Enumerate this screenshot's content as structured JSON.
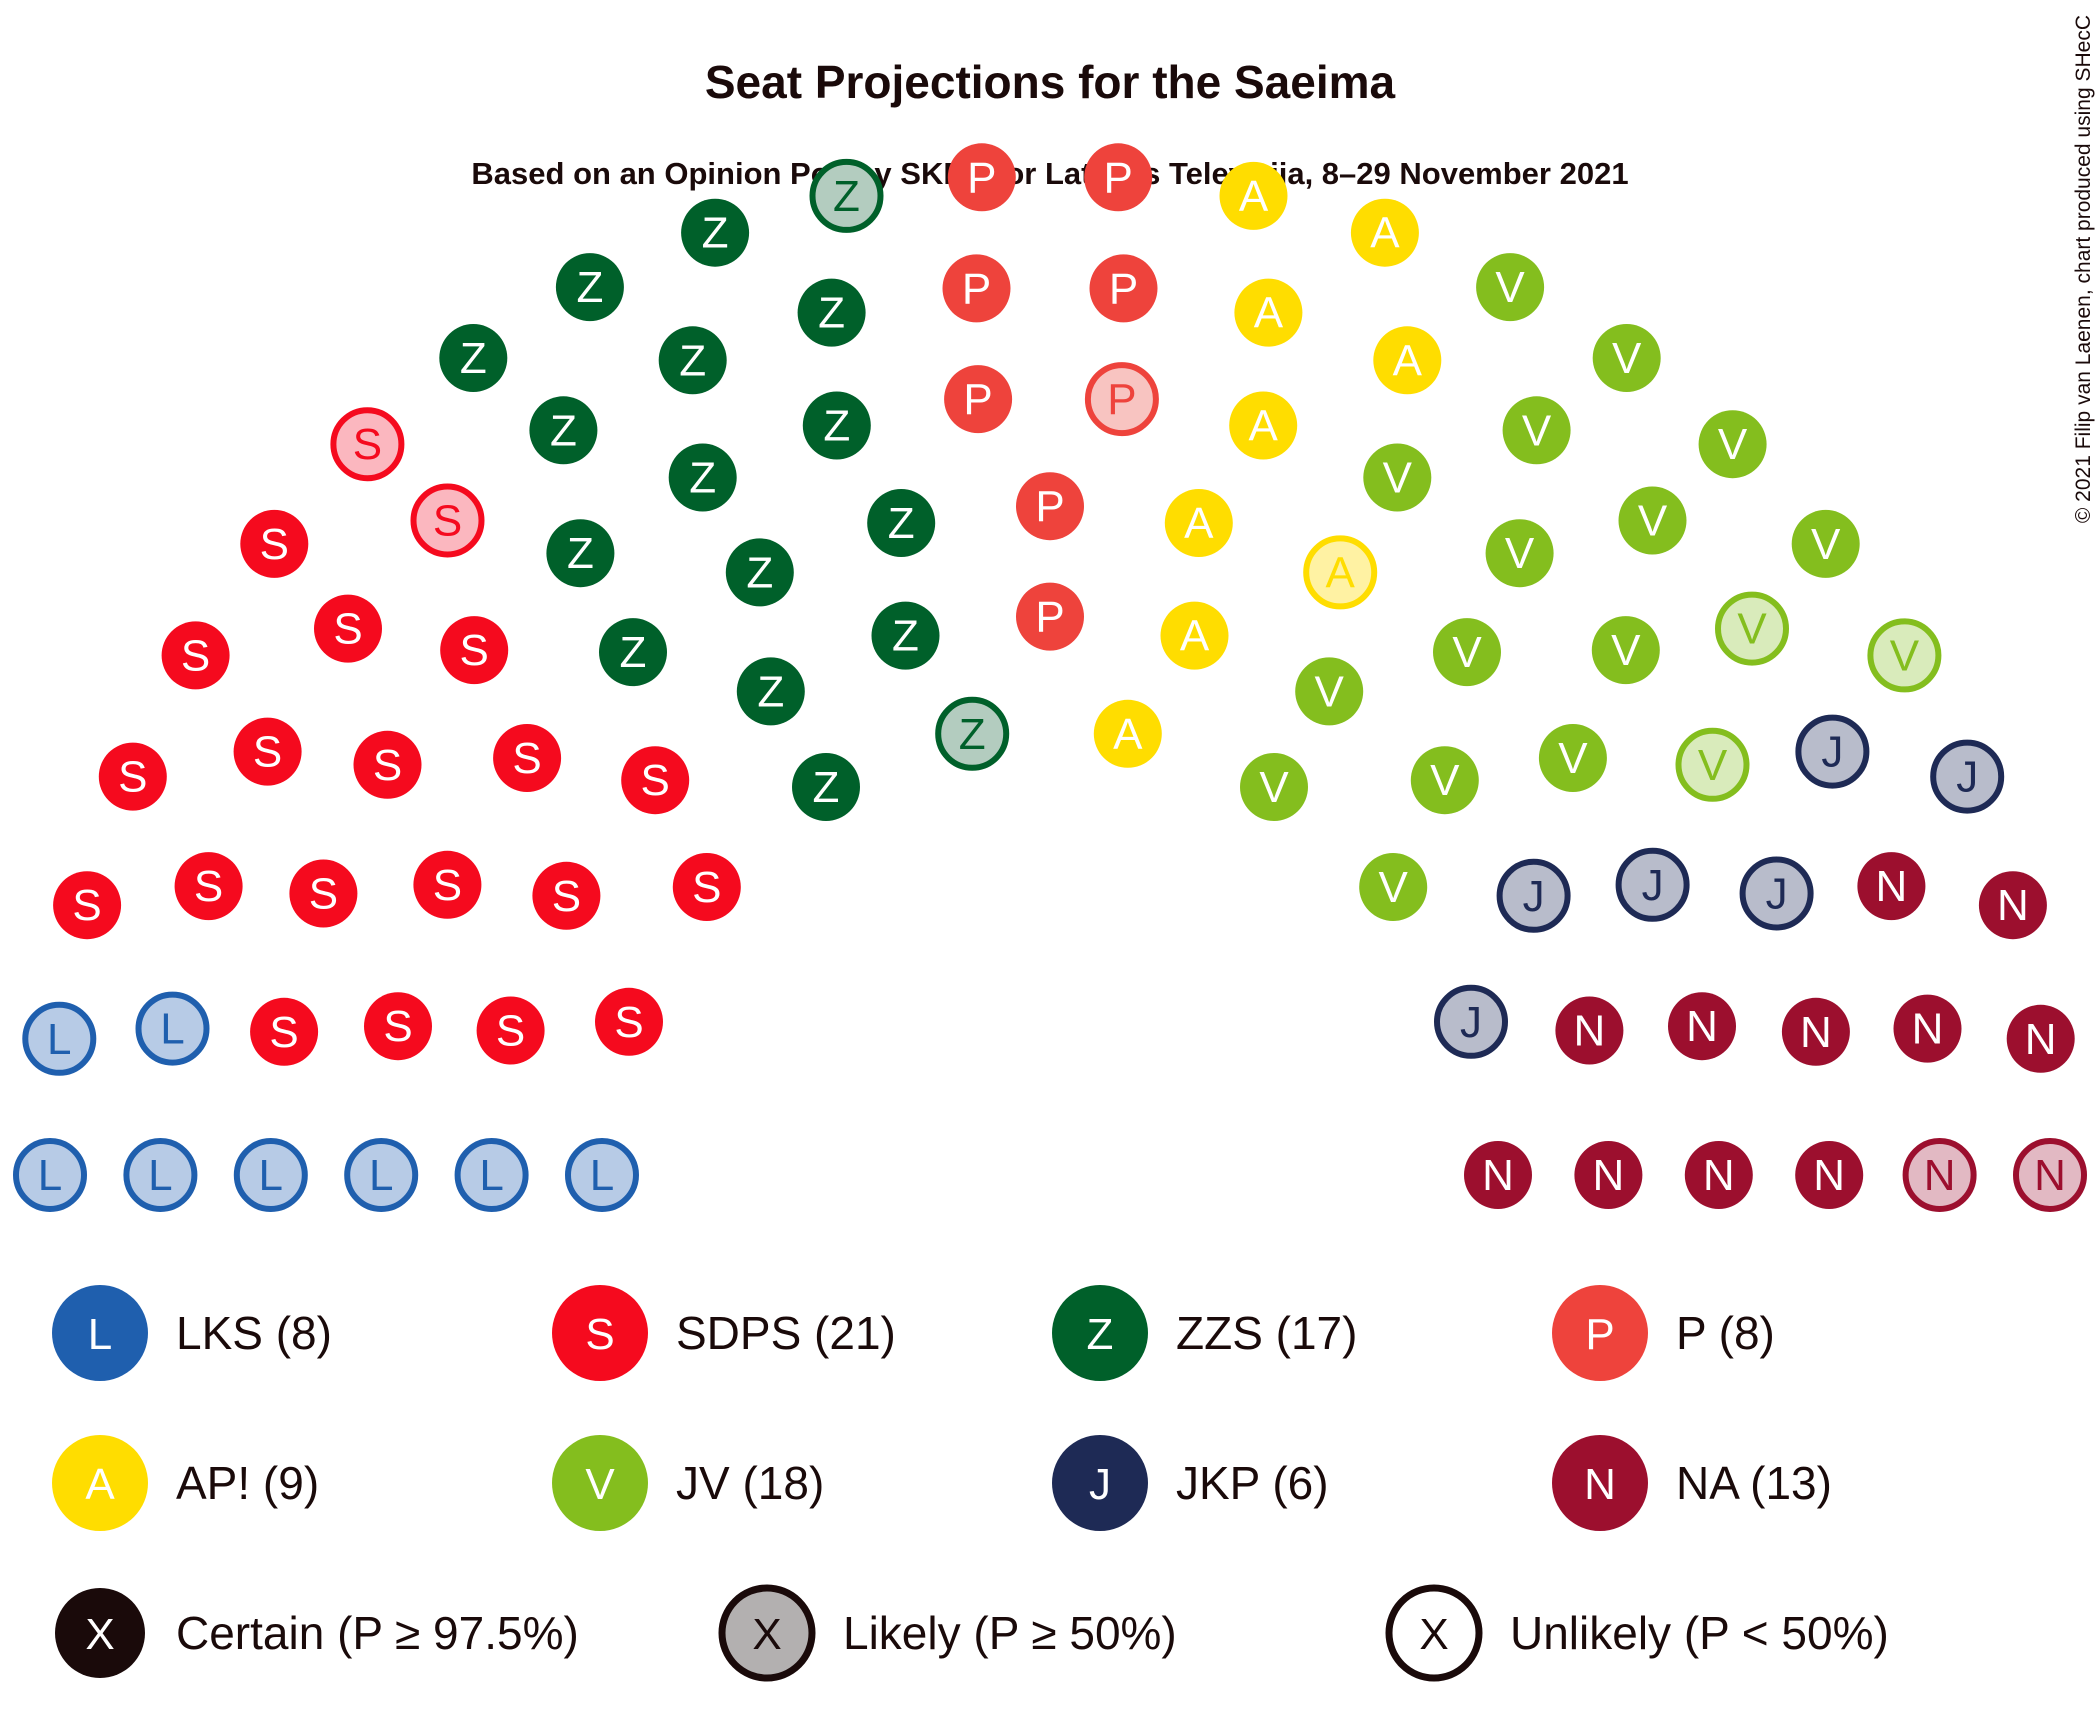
{
  "chart_data": {
    "type": "parliament",
    "title": "Seat Projections for the Saeima",
    "subtitle": "Based on an Opinion Poll by SKDS for Latvijas Televīzija, 8–29 November 2021",
    "credit": "© 2021 Filip van Laenen, chart produced using SHecC",
    "total_seats": 100,
    "parties": [
      {
        "letter": "L",
        "name": "LKS",
        "seats": 8,
        "label": "LKS (8)",
        "color": "#1f5fae",
        "light": "#b7cbe6",
        "certain": 0,
        "likely": 0,
        "unlikely": 8
      },
      {
        "letter": "S",
        "name": "SDPS",
        "seats": 21,
        "label": "SDPS (21)",
        "color": "#f50a1e",
        "light": "#fbb7bf",
        "certain": 19,
        "likely": 0,
        "unlikely": 2
      },
      {
        "letter": "Z",
        "name": "ZZS",
        "seats": 17,
        "label": "ZZS (17)",
        "color": "#00602a",
        "light": "#b3ccbf",
        "certain": 15,
        "likely": 0,
        "unlikely": 2
      },
      {
        "letter": "P",
        "name": "P",
        "seats": 8,
        "label": "P (8)",
        "color": "#ee433c",
        "light": "#f8c4c1",
        "certain": 7,
        "likely": 0,
        "unlikely": 1
      },
      {
        "letter": "A",
        "name": "AP!",
        "seats": 9,
        "label": "AP! (9)",
        "color": "#ffdd00",
        "light": "#fff2a3",
        "certain": 8,
        "likely": 0,
        "unlikely": 1
      },
      {
        "letter": "V",
        "name": "JV",
        "seats": 18,
        "label": "JV (18)",
        "color": "#84be1e",
        "light": "#d9ebbb",
        "certain": 15,
        "likely": 0,
        "unlikely": 3
      },
      {
        "letter": "J",
        "name": "JKP",
        "seats": 6,
        "label": "JKP (6)",
        "color": "#1e2a55",
        "light": "#b8bccb",
        "certain": 0,
        "likely": 0,
        "unlikely": 6
      },
      {
        "letter": "N",
        "name": "NA",
        "seats": 13,
        "label": "NA (13)",
        "color": "#9c0f2e",
        "light": "#e2b9c3",
        "certain": 11,
        "likely": 0,
        "unlikely": 2
      }
    ],
    "status_legend": [
      {
        "letter": "X",
        "label": "Certain (P ≥ 97.5%)",
        "style": "certain"
      },
      {
        "letter": "X",
        "label": "Likely (P ≥ 50%)",
        "style": "likely"
      },
      {
        "letter": "X",
        "label": "Unlikely (P < 50%)",
        "style": "unlikely"
      }
    ]
  }
}
